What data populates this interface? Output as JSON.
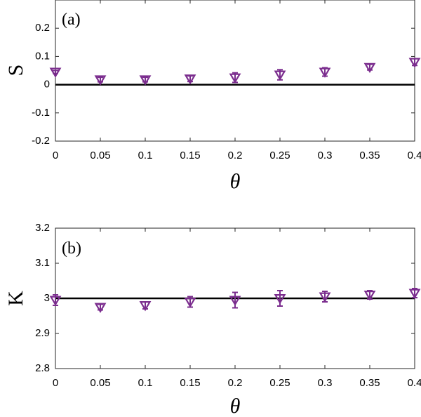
{
  "chart_data": [
    {
      "type": "scatter",
      "panel_label": "(a)",
      "xlabel": "θ",
      "ylabel": "S",
      "xlim": [
        0,
        0.4
      ],
      "ylim": [
        -0.2,
        0.3
      ],
      "x_ticks": [
        "0",
        "0.05",
        "0.1",
        "0.15",
        "0.2",
        "0.25",
        "0.3",
        "0.35",
        "0.4"
      ],
      "y_ticks": [
        "-0.2",
        "-0.1",
        "0",
        "0.1",
        "0.2"
      ],
      "reference_line": 0,
      "marker": "down-triangle",
      "color": "#7b2d8e",
      "series": [
        {
          "name": "S",
          "x": [
            0,
            0.05,
            0.1,
            0.15,
            0.2,
            0.25,
            0.3,
            0.35,
            0.4
          ],
          "y": [
            0.045,
            0.018,
            0.018,
            0.021,
            0.025,
            0.035,
            0.045,
            0.062,
            0.08
          ],
          "err": [
            0.005,
            0.008,
            0.008,
            0.01,
            0.017,
            0.018,
            0.015,
            0.01,
            0.012
          ]
        }
      ]
    },
    {
      "type": "scatter",
      "panel_label": "(b)",
      "xlabel": "θ",
      "ylabel": "K",
      "xlim": [
        0,
        0.4
      ],
      "ylim": [
        2.8,
        3.2
      ],
      "x_ticks": [
        "0",
        "0.05",
        "0.1",
        "0.15",
        "0.2",
        "0.25",
        "0.3",
        "0.35",
        "0.4"
      ],
      "y_ticks": [
        "2.8",
        "2.9",
        "3",
        "3.1",
        "3.2"
      ],
      "reference_line": 3,
      "marker": "down-triangle",
      "color": "#7b2d8e",
      "series": [
        {
          "name": "K",
          "x": [
            0,
            0.05,
            0.1,
            0.15,
            0.2,
            0.25,
            0.3,
            0.35,
            0.4
          ],
          "y": [
            2.995,
            2.975,
            2.98,
            2.99,
            2.995,
            3.0,
            3.005,
            3.01,
            3.015
          ],
          "err": [
            0.015,
            0.008,
            0.01,
            0.015,
            0.022,
            0.022,
            0.015,
            0.012,
            0.013
          ]
        }
      ]
    }
  ]
}
